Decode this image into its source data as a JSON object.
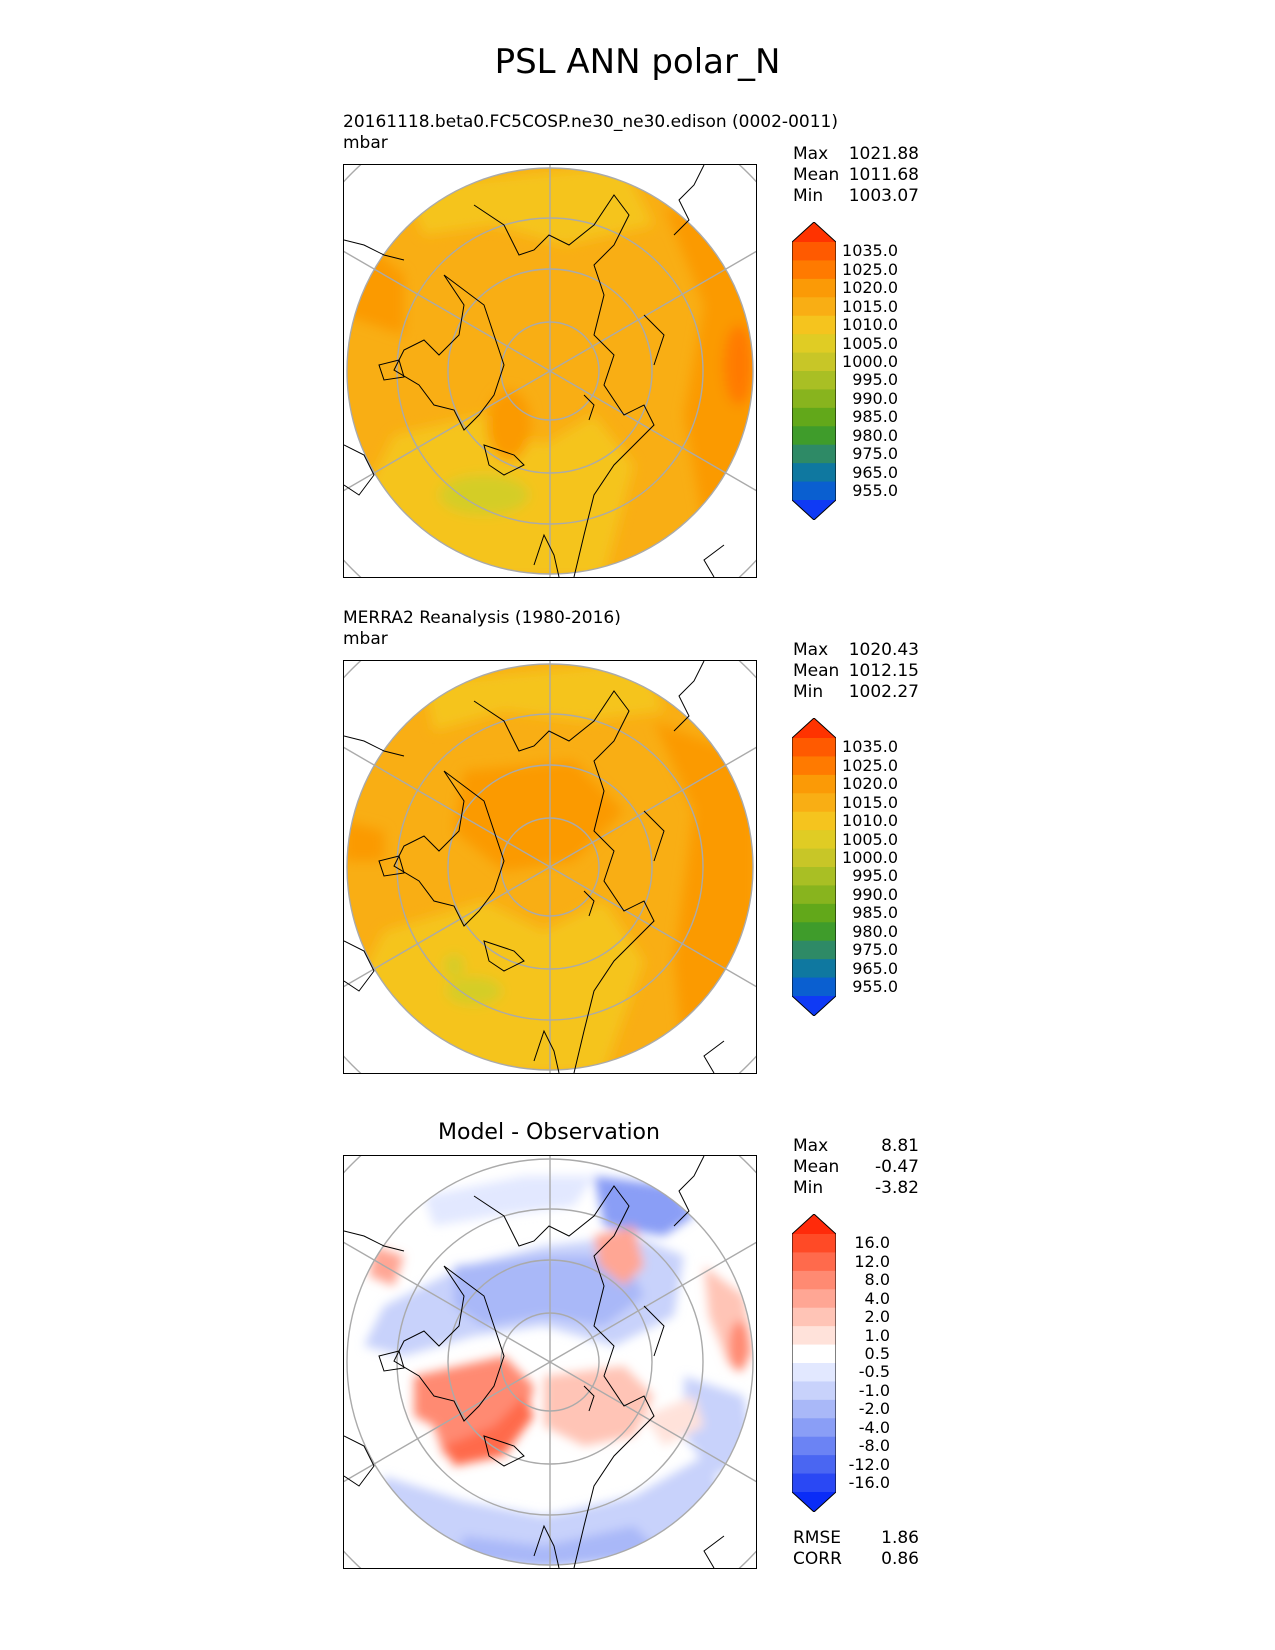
{
  "figure": {
    "title": "PSL ANN polar_N"
  },
  "chart_data": [
    {
      "type": "heatmap",
      "projection": "north-polar-stereographic",
      "subtitle_line1": "20161118.beta0.FC5COSP.ne30_ne30.edison (0002-0011)",
      "subtitle_line2": "mbar",
      "stats": [
        {
          "label": "Max",
          "value": "1021.88"
        },
        {
          "label": "Mean",
          "value": "1011.68"
        },
        {
          "label": "Min",
          "value": "1003.07"
        }
      ],
      "colorbar": {
        "levels": [
          "1035.0",
          "1025.0",
          "1020.0",
          "1015.0",
          "1010.0",
          "1005.0",
          "1000.0",
          "995.0",
          "990.0",
          "985.0",
          "980.0",
          "975.0",
          "965.0",
          "955.0"
        ],
        "colors": [
          "#ff3300",
          "#ff5a00",
          "#ff7a00",
          "#fb9a06",
          "#f9ae14",
          "#f5c41e",
          "#e0cc24",
          "#c8c627",
          "#a9bf24",
          "#88b41e",
          "#62a81a",
          "#3f9c2b",
          "#2e8a66",
          "#0f78a0",
          "#0a5fd0",
          "#0f3af5"
        ]
      },
      "palette_key": "abs"
    },
    {
      "type": "heatmap",
      "projection": "north-polar-stereographic",
      "subtitle_line1": "MERRA2 Reanalysis (1980-2016)",
      "subtitle_line2": "mbar",
      "stats": [
        {
          "label": "Max",
          "value": "1020.43"
        },
        {
          "label": "Mean",
          "value": "1012.15"
        },
        {
          "label": "Min",
          "value": "1002.27"
        }
      ],
      "colorbar": {
        "levels": [
          "1035.0",
          "1025.0",
          "1020.0",
          "1015.0",
          "1010.0",
          "1005.0",
          "1000.0",
          "995.0",
          "990.0",
          "985.0",
          "980.0",
          "975.0",
          "965.0",
          "955.0"
        ],
        "colors": [
          "#ff3300",
          "#ff5a00",
          "#ff7a00",
          "#fb9a06",
          "#f9ae14",
          "#f5c41e",
          "#e0cc24",
          "#c8c627",
          "#a9bf24",
          "#88b41e",
          "#62a81a",
          "#3f9c2b",
          "#2e8a66",
          "#0f78a0",
          "#0a5fd0",
          "#0f3af5"
        ]
      },
      "palette_key": "abs"
    },
    {
      "type": "heatmap",
      "projection": "north-polar-stereographic",
      "title": "Model - Observation",
      "stats": [
        {
          "label": "Max",
          "value": "8.81"
        },
        {
          "label": "Mean",
          "value": "-0.47"
        },
        {
          "label": "Min",
          "value": "-3.82"
        }
      ],
      "colorbar": {
        "levels": [
          "16.0",
          "12.0",
          "8.0",
          "4.0",
          "2.0",
          "1.0",
          "0.5",
          "-0.5",
          "-1.0",
          "-2.0",
          "-4.0",
          "-8.0",
          "-12.0",
          "-16.0"
        ],
        "colors": [
          "#ff2a0a",
          "#ff4a26",
          "#ff6a4c",
          "#ff8a72",
          "#ffa694",
          "#ffc4b6",
          "#ffe2da",
          "#ffffff",
          "#e2e8ff",
          "#c8d2fb",
          "#a9b8f8",
          "#8a9ef6",
          "#6b83f4",
          "#4a66f2",
          "#2a48f4",
          "#0a2cf7"
        ]
      },
      "metrics": [
        {
          "label": "RMSE",
          "value": "1.86"
        },
        {
          "label": "CORR",
          "value": "0.86"
        }
      ],
      "palette_key": "diff"
    }
  ]
}
